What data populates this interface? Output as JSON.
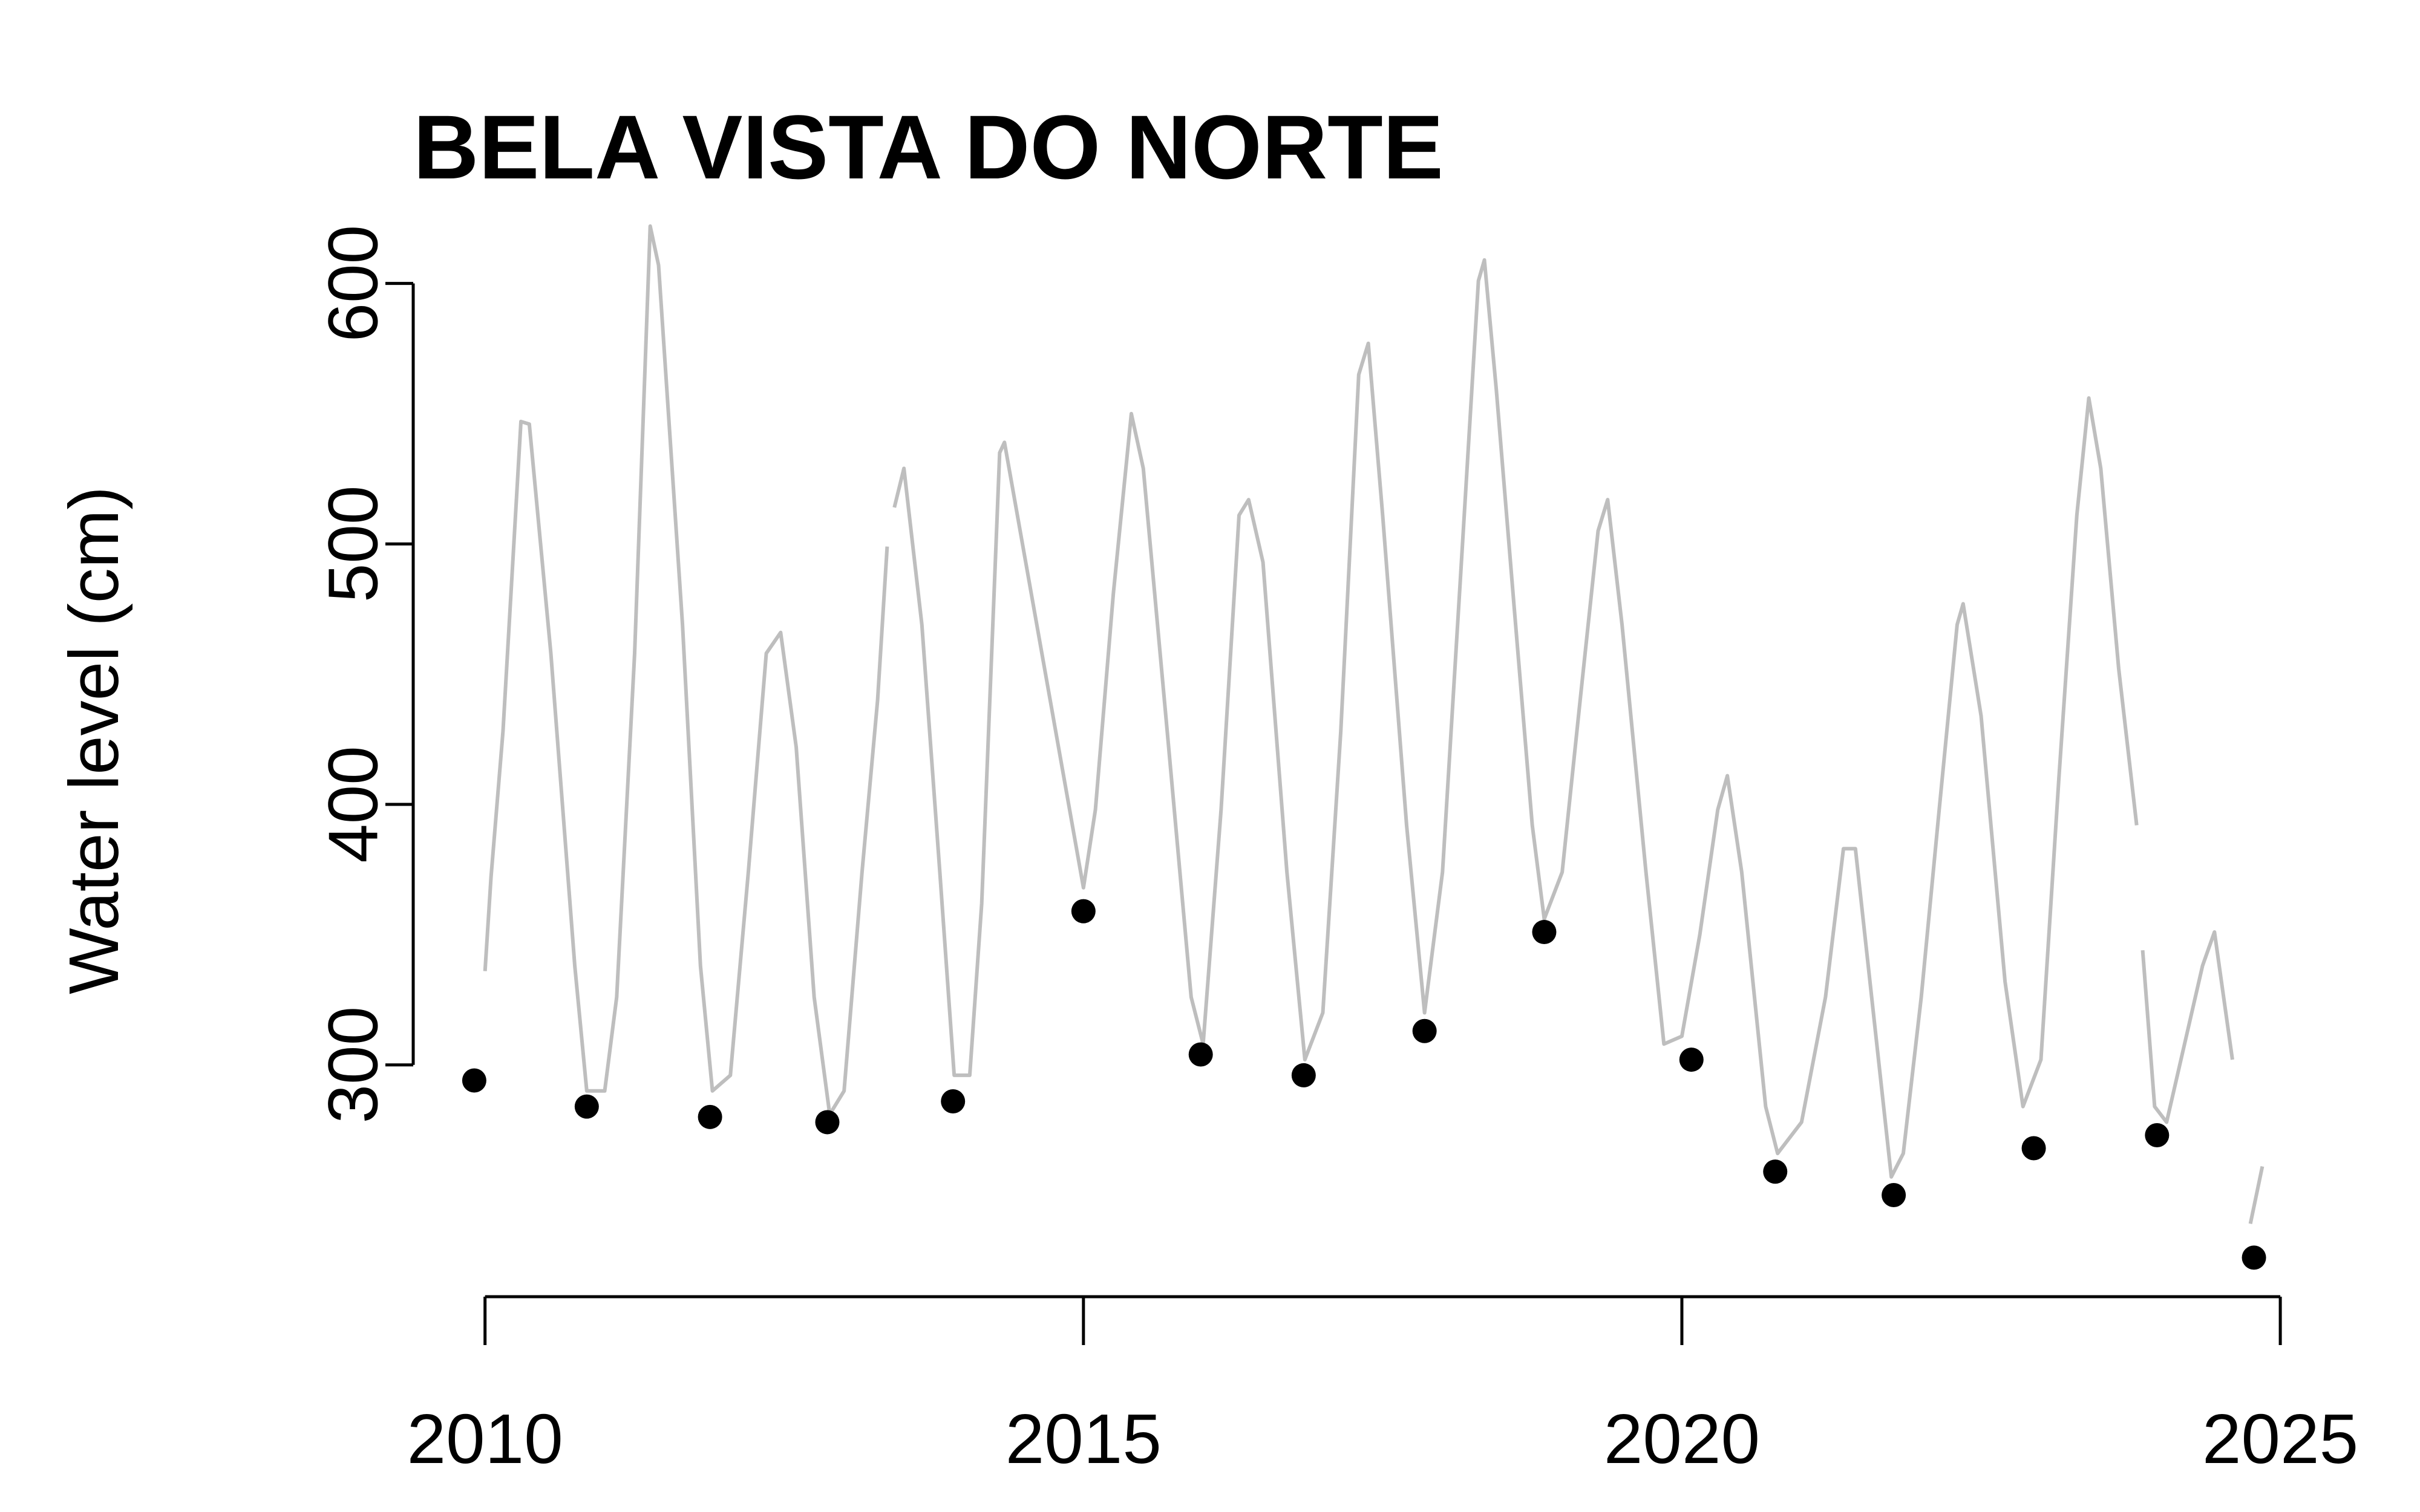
{
  "chart_data": {
    "type": "line",
    "title": "BELA VISTA DO NORTE",
    "y_label": "Water level (cm)",
    "xlim": [
      2009.4,
      2025.5
    ],
    "ylim": [
      211,
      625
    ],
    "xticks": [
      2010,
      2015,
      2020,
      2025
    ],
    "yticks": [
      300,
      400,
      500,
      600
    ],
    "series": [
      {
        "type": "line",
        "color": "#bebebe",
        "x": [
          2010.0,
          2010.05,
          2010.15,
          2010.3,
          2010.37,
          2010.55,
          2010.75,
          2010.85,
          2011.0,
          2011.1,
          2011.25,
          2011.38,
          2011.45,
          2011.65,
          2011.8,
          2011.9,
          2012.05,
          2012.2,
          2012.35,
          2012.47,
          2012.6,
          2012.75,
          2012.88,
          2013.0,
          2013.15,
          2013.28,
          2013.36,
          2013.39,
          2013.42,
          2013.5,
          2013.65,
          2013.8,
          2013.92,
          2014.05,
          2014.15,
          2014.3,
          2014.34,
          2015.0,
          2015.1,
          2015.25,
          2015.4,
          2015.5,
          2015.7,
          2015.9,
          2016.0,
          2016.15,
          2016.3,
          2016.38,
          2016.5,
          2016.7,
          2016.85,
          2017.0,
          2017.15,
          2017.3,
          2017.38,
          2017.5,
          2017.7,
          2017.85,
          2018.0,
          2018.15,
          2018.3,
          2018.35,
          2018.45,
          2018.6,
          2018.75,
          2018.85,
          2019.0,
          2019.15,
          2019.3,
          2019.38,
          2019.5,
          2019.7,
          2019.85,
          2020.0,
          2020.15,
          2020.3,
          2020.38,
          2020.5,
          2020.7,
          2020.8,
          2021.0,
          2021.2,
          2021.35,
          2021.45,
          2021.6,
          2021.75,
          2021.85,
          2022.0,
          2022.15,
          2022.3,
          2022.35,
          2022.5,
          2022.7,
          2022.85,
          2023.0,
          2023.15,
          2023.3,
          2023.4,
          2023.5,
          2023.65,
          2023.8,
          2023.82,
          2023.85,
          2023.95,
          2024.05,
          2024.2,
          2024.35,
          2024.45,
          2024.6,
          2024.68,
          2024.75,
          2024.85
        ],
        "values": [
          336,
          372,
          428,
          547,
          546,
          458,
          338,
          290,
          290,
          326,
          458,
          622,
          607,
          469,
          338,
          290,
          296,
          374,
          458,
          466,
          422,
          326,
          281,
          290,
          374,
          440,
          499,
          null,
          514,
          529,
          469,
          374,
          296,
          296,
          362,
          535,
          539,
          368,
          398,
          481,
          550,
          529,
          428,
          326,
          308,
          398,
          511,
          517,
          493,
          374,
          302,
          320,
          428,
          565,
          577,
          511,
          392,
          320,
          374,
          487,
          601,
          609,
          559,
          475,
          392,
          356,
          374,
          440,
          505,
          517,
          469,
          374,
          308,
          311,
          350,
          398,
          411,
          374,
          284,
          266,
          278,
          326,
          383,
          383,
          320,
          257,
          266,
          326,
          398,
          469,
          477,
          434,
          332,
          284,
          302,
          410,
          511,
          556,
          529,
          452,
          392,
          null,
          344,
          284,
          278,
          308,
          338,
          351,
          302,
          null,
          239,
          261
        ]
      },
      {
        "type": "scatter",
        "color": "#000000",
        "x": [
          2009.91,
          2010.85,
          2011.88,
          2012.86,
          2013.91,
          2015.0,
          2015.98,
          2016.84,
          2017.85,
          2018.85,
          2020.08,
          2020.78,
          2021.77,
          2022.94,
          2023.97,
          2024.78
        ],
        "values": [
          294,
          284,
          280,
          278,
          286,
          359,
          304,
          296,
          313,
          351,
          302,
          259,
          250,
          268,
          273,
          226
        ]
      }
    ]
  }
}
